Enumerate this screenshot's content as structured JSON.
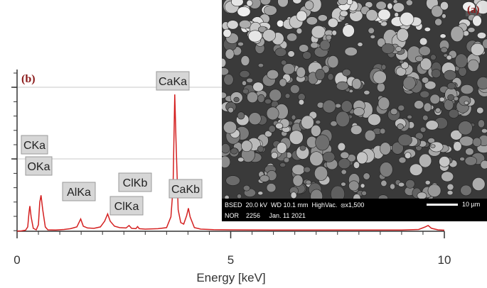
{
  "panels": {
    "spectrum_letter": "(b)",
    "micrograph_letter": "(a)"
  },
  "chart_data": {
    "type": "line",
    "title": "",
    "xlabel": "Energy [keV]",
    "ylabel": "",
    "xlim": [
      0,
      10
    ],
    "xticks": [
      0,
      5,
      10
    ],
    "xtick_labels": [
      "0",
      "5",
      "10"
    ],
    "grid": true,
    "line_color": "#d42020",
    "series": [
      {
        "points": [
          [
            0.0,
            0.3
          ],
          [
            0.1,
            0.5
          ],
          [
            0.2,
            1.5
          ],
          [
            0.25,
            6
          ],
          [
            0.28,
            26
          ],
          [
            0.3,
            35
          ],
          [
            0.33,
            20
          ],
          [
            0.38,
            4
          ],
          [
            0.45,
            2
          ],
          [
            0.5,
            9
          ],
          [
            0.53,
            40
          ],
          [
            0.56,
            50
          ],
          [
            0.6,
            30
          ],
          [
            0.66,
            6
          ],
          [
            0.72,
            2
          ],
          [
            0.9,
            1.8
          ],
          [
            1.1,
            2.5
          ],
          [
            1.25,
            3.5
          ],
          [
            1.4,
            6
          ],
          [
            1.49,
            17
          ],
          [
            1.55,
            7
          ],
          [
            1.65,
            4.5
          ],
          [
            1.8,
            4
          ],
          [
            1.95,
            6
          ],
          [
            2.05,
            14
          ],
          [
            2.12,
            24
          ],
          [
            2.18,
            14
          ],
          [
            2.28,
            7
          ],
          [
            2.4,
            5
          ],
          [
            2.55,
            4.5
          ],
          [
            2.62,
            8
          ],
          [
            2.68,
            4
          ],
          [
            2.78,
            3.5
          ],
          [
            2.82,
            6.5
          ],
          [
            2.86,
            3.5
          ],
          [
            3.0,
            3
          ],
          [
            3.3,
            3.5
          ],
          [
            3.5,
            5
          ],
          [
            3.6,
            20
          ],
          [
            3.65,
            60
          ],
          [
            3.69,
            190
          ],
          [
            3.72,
            125
          ],
          [
            3.77,
            30
          ],
          [
            3.83,
            12
          ],
          [
            3.9,
            10
          ],
          [
            3.97,
            22
          ],
          [
            4.01,
            32
          ],
          [
            4.05,
            20
          ],
          [
            4.15,
            5
          ],
          [
            4.3,
            3
          ],
          [
            4.6,
            2.2
          ],
          [
            5.0,
            2
          ],
          [
            6.0,
            1.8
          ],
          [
            7.0,
            1.7
          ],
          [
            8.0,
            1.7
          ],
          [
            9.0,
            1.8
          ],
          [
            9.4,
            2.5
          ],
          [
            9.55,
            6
          ],
          [
            9.62,
            8
          ],
          [
            9.7,
            4
          ],
          [
            9.85,
            2
          ],
          [
            10.0,
            1.5
          ]
        ]
      }
    ],
    "ymax": 200,
    "peak_labels": [
      {
        "text": "CKa",
        "energy": 0.28
      },
      {
        "text": "OKa",
        "energy": 0.53
      },
      {
        "text": "AlKa",
        "energy": 1.49
      },
      {
        "text": "ClKb",
        "energy": 2.82
      },
      {
        "text": "ClKa",
        "energy": 2.62
      },
      {
        "text": "CaKa",
        "energy": 3.69
      },
      {
        "text": "CaKb",
        "energy": 4.01
      }
    ]
  },
  "micrograph": {
    "line1": "BSED  20.0 kV  WD 10.1 mm  HighVac.  ⦻x1,500",
    "line2": "NOR    2256     Jan. 11 2021",
    "scale_label": "10 µm"
  }
}
